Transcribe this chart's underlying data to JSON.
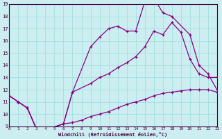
{
  "xlabel": "Windchill (Refroidissement éolien,°C)",
  "xlim": [
    0,
    23
  ],
  "ylim": [
    9,
    19
  ],
  "yticks": [
    9,
    10,
    11,
    12,
    13,
    14,
    15,
    16,
    17,
    18,
    19
  ],
  "xticks": [
    0,
    1,
    2,
    3,
    4,
    5,
    6,
    7,
    8,
    9,
    10,
    11,
    12,
    13,
    14,
    15,
    16,
    17,
    18,
    19,
    20,
    21,
    22,
    23
  ],
  "background_color": "#cceef0",
  "grid_color": "#99dddd",
  "line_color": "#880088",
  "line1_x": [
    0,
    1,
    2,
    3,
    4,
    6,
    7,
    9,
    10,
    11,
    12,
    13,
    14,
    15,
    16,
    17,
    18,
    19,
    20,
    21,
    22,
    23
  ],
  "line1_y": [
    11.5,
    11.0,
    10.5,
    8.8,
    8.7,
    9.2,
    11.8,
    12.5,
    13.0,
    13.3,
    13.8,
    14.2,
    14.7,
    15.5,
    16.8,
    16.5,
    17.5,
    16.7,
    14.5,
    13.3,
    13.0,
    13.0
  ],
  "line2_x": [
    0,
    1,
    2,
    3,
    4,
    6,
    7,
    9,
    10,
    11,
    12,
    13,
    14,
    15,
    16,
    17,
    18,
    20,
    21,
    22,
    23
  ],
  "line2_y": [
    11.5,
    11.0,
    10.5,
    8.8,
    8.7,
    9.2,
    11.8,
    15.5,
    16.3,
    17.0,
    17.2,
    16.8,
    16.8,
    19.2,
    19.5,
    18.3,
    18.0,
    16.5,
    14.0,
    13.3,
    12.0
  ],
  "line3_x": [
    0,
    1,
    2,
    3,
    4,
    6,
    7,
    8,
    9,
    10,
    11,
    12,
    13,
    14,
    15,
    16,
    17,
    18,
    19,
    20,
    21,
    22,
    23
  ],
  "line3_y": [
    11.5,
    11.0,
    10.5,
    8.8,
    8.7,
    9.2,
    9.3,
    9.5,
    9.8,
    10.0,
    10.2,
    10.5,
    10.8,
    11.0,
    11.2,
    11.5,
    11.7,
    11.8,
    11.9,
    12.0,
    12.0,
    12.0,
    11.8
  ]
}
